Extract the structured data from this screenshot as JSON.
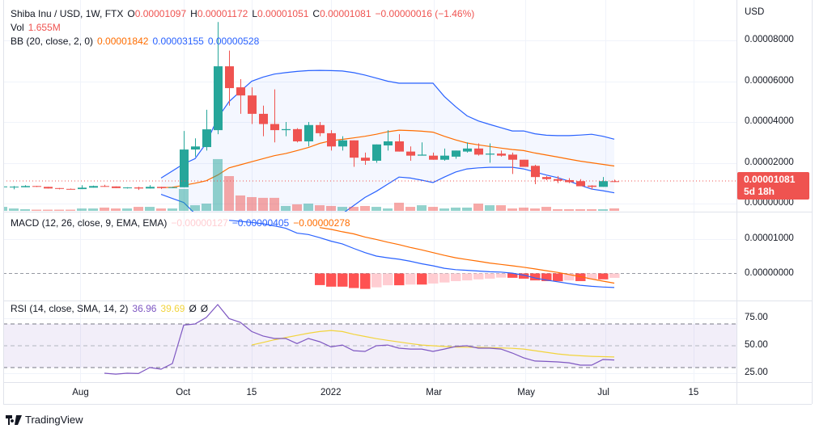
{
  "header": {
    "symbol": "Shiba Inu / USD, 1W, FTX",
    "o_label": "O",
    "o": "0.00001097",
    "h_label": "H",
    "h": "0.00001172",
    "l_label": "L",
    "l": "0.00001051",
    "c_label": "C",
    "c": "0.00001081",
    "change": "−0.00000016 (−1.46%)"
  },
  "volume_legend": {
    "label": "Vol",
    "value": "1.655M"
  },
  "bb_legend": {
    "label": "BB (20, close, 2, 0)",
    "basis": "0.00001842",
    "upper": "0.00003155",
    "lower": "0.00000528"
  },
  "macd_legend": {
    "label": "MACD (12, 26, close, 9, EMA, EMA)",
    "histogram": "−0.00000127",
    "macd": "−0.00000405",
    "signal": "−0.00000278"
  },
  "rsi_legend": {
    "label": "RSI (14, close, SMA, 14, 2)",
    "rsi": "36.96",
    "sma": "39.69",
    "extra1": "Ø",
    "extra2": "Ø"
  },
  "price_axis": {
    "currency": "USD",
    "ticks": [
      "0.00008000",
      "0.00006000",
      "0.00004000",
      "0.00002000",
      "0.00000000"
    ],
    "tick_values": [
      8e-05,
      6e-05,
      4e-05,
      2e-05,
      0
    ],
    "last_price": "0.00001081",
    "countdown": "5d 18h"
  },
  "macd_axis": {
    "ticks": [
      "0.00001000",
      "0.00000000"
    ],
    "tick_values": [
      1e-05,
      0
    ]
  },
  "rsi_axis": {
    "ticks": [
      "75.00",
      "50.00",
      "25.00"
    ],
    "tick_values": [
      75,
      50,
      25
    ],
    "upper_band": 70,
    "middle": 50,
    "lower_band": 30
  },
  "time_axis": {
    "ticks": [
      "Aug",
      "Oct",
      "15",
      "2022",
      "Mar",
      "May",
      "Jul",
      "15"
    ]
  },
  "footer": {
    "brand": "TradingView"
  },
  "colors": {
    "up": "#26a69a",
    "down": "#ef5350",
    "bb_band": "#2962ff",
    "bb_basis": "#ff6d00",
    "macd": "#2962ff",
    "signal": "#ff6d00",
    "hist_fall": "#ff5252",
    "hist_rise": "#ffcdd2",
    "rsi": "#7e57c2",
    "rsi_sma": "#f2d43c"
  },
  "chart_data": {
    "type": "candlestick",
    "interval": "1W",
    "candles_ohlc": [
      [
        8.2e-06,
        8.6e-06,
        8e-06,
        8.4e-06
      ],
      [
        8e-06,
        8.6e-06,
        7e-06,
        8.3e-06
      ],
      [
        8e-06,
        9e-06,
        8e-06,
        8.6e-06
      ],
      [
        8.6e-06,
        8.7e-06,
        8.1e-06,
        8.2e-06
      ],
      [
        8.2e-06,
        8.2e-06,
        7.4e-06,
        7.4e-06
      ],
      [
        7.6e-06,
        7.6e-06,
        7e-06,
        7.2e-06
      ],
      [
        7.2e-06,
        7.4e-06,
        7e-06,
        7.1e-06
      ],
      [
        7.1e-06,
        9e-06,
        7.1e-06,
        7.8e-06
      ],
      [
        7.8e-06,
        8.8e-06,
        7.8e-06,
        8.6e-06
      ],
      [
        8.6e-06,
        9.2e-06,
        8.2e-06,
        8.5e-06
      ],
      [
        8.4e-06,
        8.4e-06,
        7.6e-06,
        7.6e-06
      ],
      [
        7.6e-06,
        8e-06,
        7.4e-06,
        7.9e-06
      ],
      [
        7.9e-06,
        8.2e-06,
        6.7e-06,
        7.4e-06
      ],
      [
        7.4e-06,
        9e-06,
        7.4e-06,
        8.2e-06
      ],
      [
        8.2e-06,
        8.2e-06,
        7.2e-06,
        7.6e-06
      ],
      [
        7.6e-06,
        8.2e-06,
        7.6e-06,
        8e-06
      ],
      [
        8e-06,
        3.56e-05,
        8e-06,
        2.65e-05
      ],
      [
        2.65e-05,
        3.2e-05,
        2.3e-05,
        2.8e-05
      ],
      [
        2.77e-05,
        4.6e-05,
        2.6e-05,
        3.64e-05
      ],
      [
        3.6e-05,
        8.9e-05,
        3.4e-05,
        6.73e-05
      ],
      [
        6.73e-05,
        7.5e-05,
        4.8e-05,
        5.66e-05
      ],
      [
        5.7e-05,
        6.1e-05,
        4.4e-05,
        5.3e-05
      ],
      [
        5.3e-05,
        5.7e-05,
        3.9e-05,
        4.4e-05
      ],
      [
        4.4e-05,
        4.8e-05,
        3.3e-05,
        3.9e-05
      ],
      [
        3.9e-05,
        5.6e-05,
        3e-05,
        3.6e-05
      ],
      [
        3.6e-05,
        4e-05,
        3.3e-05,
        3.65e-05
      ],
      [
        3.65e-05,
        3.7e-05,
        3e-05,
        3.05e-05
      ],
      [
        3.05e-05,
        4e-05,
        2.8e-05,
        3.85e-05
      ],
      [
        3.85e-05,
        4e-05,
        3.3e-05,
        3.45e-05
      ],
      [
        3.45e-05,
        3.6e-05,
        2.6e-05,
        2.8e-05
      ],
      [
        2.8e-05,
        3.3e-05,
        2.6e-05,
        3.1e-05
      ],
      [
        3.1e-05,
        3.1e-05,
        1.8e-05,
        2.25e-05
      ],
      [
        2.25e-05,
        2.5e-05,
        1.9e-05,
        2.1e-05
      ],
      [
        2.1e-05,
        2.9e-05,
        2e-05,
        2.9e-05
      ],
      [
        2.85e-05,
        3.6e-05,
        2.6e-05,
        3.05e-05
      ],
      [
        3.05e-05,
        3.4e-05,
        2.55e-05,
        2.55e-05
      ],
      [
        2.55e-05,
        2.8e-05,
        2.1e-05,
        2.35e-05
      ],
      [
        2.35e-05,
        3e-05,
        2.35e-05,
        2.4e-05
      ],
      [
        2.35e-05,
        2.5e-05,
        2.15e-05,
        2.15e-05
      ],
      [
        2.15e-05,
        2.7e-05,
        2.1e-05,
        2.35e-05
      ],
      [
        2.3e-05,
        2.6e-05,
        2.2e-05,
        2.6e-05
      ],
      [
        2.55e-05,
        3e-05,
        2.5e-05,
        2.7e-05
      ],
      [
        2.7e-05,
        2.95e-05,
        2.35e-05,
        2.4e-05
      ],
      [
        2.4e-05,
        2.95e-05,
        2e-05,
        2.45e-05
      ],
      [
        2.45e-05,
        2.6e-05,
        2.3e-05,
        2.35e-05
      ],
      [
        2.4e-05,
        2.5e-05,
        1.45e-05,
        2.15e-05
      ],
      [
        2.15e-05,
        2.15e-05,
        1.8e-05,
        1.8e-05
      ],
      [
        1.85e-05,
        1.9e-05,
        9.5e-06,
        1.3e-05
      ],
      [
        1.3e-05,
        1.35e-05,
        1.15e-05,
        1.2e-05
      ],
      [
        1.2e-05,
        1.35e-05,
        1e-05,
        1.12e-05
      ],
      [
        1.15e-05,
        1.25e-05,
        1e-05,
        1.05e-05
      ],
      [
        1.1e-05,
        1.2e-05,
        8.5e-06,
        8.5e-06
      ],
      [
        8.8e-06,
        9e-06,
        7e-06,
        8.2e-06
      ],
      [
        8.2e-06,
        1.3e-05,
        8.2e-06,
        1.1e-05
      ],
      [
        1.097e-05,
        1.172e-05,
        1.051e-05,
        1.081e-05
      ]
    ],
    "volume_millions": [
      2.7,
      1.6,
      1.1,
      0.8,
      0.8,
      0.8,
      0.8,
      1.6,
      1.6,
      2.2,
      1.6,
      1.6,
      2.7,
      2.7,
      1.6,
      1.6,
      14.8,
      3.8,
      4.9,
      35,
      23.5,
      10.4,
      9.3,
      8.8,
      8.8,
      3.3,
      4.4,
      4.9,
      3.8,
      3.3,
      2.7,
      2.7,
      3.3,
      2.7,
      1.6,
      5.5,
      2.7,
      3.8,
      2.7,
      1.6,
      2.2,
      2.2,
      4.9,
      3.8,
      3.8,
      1.6,
      2.2,
      1.6,
      2.7,
      1.1,
      1.1,
      1.1,
      1.1,
      1.1,
      1.655
    ],
    "bb_upper": [
      null,
      null,
      null,
      null,
      null,
      null,
      null,
      null,
      null,
      null,
      null,
      null,
      null,
      null,
      1.25e-05,
      1.6e-05,
      1.95e-05,
      2.2e-05,
      2.97e-05,
      4.2e-05,
      5e-05,
      5.5e-05,
      6e-05,
      6.2e-05,
      6.35e-05,
      6.42e-05,
      6.48e-05,
      6.52e-05,
      6.53e-05,
      6.52e-05,
      6.5e-05,
      6.42e-05,
      6.3e-05,
      6.15e-05,
      6e-05,
      5.9e-05,
      5.9e-05,
      5.9e-05,
      5.9e-05,
      5.25e-05,
      4.75e-05,
      4.3e-05,
      4.05e-05,
      3.88e-05,
      3.72e-05,
      3.56e-05,
      3.56e-05,
      3.42e-05,
      3.35e-05,
      3.33e-05,
      3.33e-05,
      3.36e-05,
      3.4e-05,
      3.3e-05,
      3.155e-05
    ],
    "bb_basis": [
      null,
      null,
      null,
      null,
      null,
      null,
      null,
      null,
      null,
      null,
      null,
      null,
      null,
      null,
      7.8e-06,
      8e-06,
      9e-06,
      1e-05,
      1.12e-05,
      1.4e-05,
      1.75e-05,
      1.9e-05,
      2.05e-05,
      2.2e-05,
      2.35e-05,
      2.45e-05,
      2.6e-05,
      2.75e-05,
      2.95e-05,
      3.08e-05,
      3.15e-05,
      3.22e-05,
      3.3e-05,
      3.4e-05,
      3.52e-05,
      3.6e-05,
      3.58e-05,
      3.55e-05,
      3.5e-05,
      3.3e-05,
      3.12e-05,
      2.97e-05,
      2.88e-05,
      2.8e-05,
      2.72e-05,
      2.65e-05,
      2.6e-05,
      2.48e-05,
      2.38e-05,
      2.28e-05,
      2.18e-05,
      2.08e-05,
      2e-05,
      1.92e-05,
      1.842e-05
    ],
    "bb_lower": [
      null,
      null,
      null,
      null,
      null,
      null,
      null,
      null,
      null,
      null,
      null,
      null,
      null,
      null,
      4.5e-06,
      2.5e-06,
      5e-07,
      -5e-06,
      -1.1e-05,
      -1.6e-05,
      -2e-05,
      -2.3e-05,
      -2.5e-05,
      -2.5e-05,
      -2.4e-05,
      -2.2e-05,
      -1.9e-05,
      -1.6e-05,
      -1.3e-05,
      -9e-06,
      -5e-06,
      -1e-06,
      3e-06,
      6e-06,
      9.5e-06,
      1.3e-05,
      1.25e-05,
      1.15e-05,
      1.03e-05,
      1.3e-05,
      1.55e-05,
      1.7e-05,
      1.75e-05,
      1.78e-05,
      1.78e-05,
      1.78e-05,
      1.7e-05,
      1.55e-05,
      1.4e-05,
      1.27e-05,
      1.1e-05,
      9e-06,
      7.1e-06,
      6.3e-06,
      5.28e-06
    ],
    "macd": [
      null,
      null,
      null,
      null,
      null,
      null,
      null,
      null,
      null,
      null,
      null,
      null,
      null,
      null,
      null,
      null,
      null,
      null,
      null,
      null,
      1.53e-05,
      1.5e-05,
      1.47e-05,
      1.43e-05,
      1.37e-05,
      1.3e-05,
      1.16e-05,
      1.12e-05,
      1.03e-05,
      9.3e-06,
      8.5e-06,
      7.2e-06,
      6e-06,
      5e-06,
      4.5e-06,
      4.1e-06,
      3.5e-06,
      2.8e-06,
      2.2e-06,
      1.5e-06,
      1.1e-06,
      9e-07,
      7e-07,
      5e-07,
      4e-07,
      1e-07,
      -5e-07,
      -1.3e-06,
      -1.9e-06,
      -2.4e-06,
      -2.9e-06,
      -3.4e-06,
      -3.7e-06,
      -3.9e-06,
      -4.05e-06
    ],
    "macd_signal": [
      null,
      null,
      null,
      null,
      null,
      null,
      null,
      null,
      null,
      null,
      null,
      null,
      null,
      null,
      null,
      null,
      null,
      null,
      null,
      null,
      null,
      null,
      null,
      null,
      null,
      null,
      null,
      null,
      1.32e-05,
      1.27e-05,
      1.2e-05,
      1.14e-05,
      1.05e-05,
      9.8e-06,
      9e-06,
      8.3e-06,
      7.5e-06,
      6.8e-06,
      6e-06,
      5.2e-06,
      4.5e-06,
      4e-06,
      3.5e-06,
      3e-06,
      2.6e-06,
      2.2e-06,
      1.8e-06,
      1.3e-06,
      8e-07,
      3e-07,
      -3e-07,
      -9e-07,
      -1.6e-06,
      -2.2e-06,
      -2.78e-06
    ],
    "macd_histogram": [
      null,
      null,
      null,
      null,
      null,
      null,
      null,
      null,
      null,
      null,
      null,
      null,
      null,
      null,
      null,
      null,
      null,
      null,
      null,
      null,
      null,
      null,
      null,
      null,
      null,
      null,
      null,
      null,
      -3.35e-06,
      -3.8e-06,
      -3.8e-06,
      -4.2e-06,
      -4.45e-06,
      -4e-06,
      -3.4e-06,
      -3.4e-06,
      -3.2e-06,
      -3.2e-06,
      -2.9e-06,
      -2.6e-06,
      -2.2e-06,
      -2e-06,
      -1.7e-06,
      -1.5e-06,
      -1.2e-06,
      -1.25e-06,
      -1.5e-06,
      -2e-06,
      -2.2e-06,
      -2.25e-06,
      -2e-06,
      -2.2e-06,
      -1.7e-06,
      -1.7e-06,
      -1.27e-06
    ],
    "rsi": [
      null,
      null,
      null,
      null,
      null,
      null,
      null,
      null,
      null,
      24.8,
      24,
      24.8,
      24.5,
      30,
      28.5,
      33.7,
      69,
      70,
      76,
      87.8,
      75,
      71.5,
      63,
      59,
      56.7,
      56.7,
      52,
      56.7,
      53.7,
      49,
      50.7,
      45.5,
      44.8,
      50,
      50.7,
      47.8,
      47,
      47,
      44.8,
      47,
      49.3,
      50,
      47.8,
      47.8,
      47,
      43.3,
      39,
      36,
      35.6,
      35.2,
      34.4,
      32.2,
      32.2,
      37.4,
      36.96
    ],
    "rsi_sma": [
      null,
      null,
      null,
      null,
      null,
      null,
      null,
      null,
      null,
      null,
      null,
      null,
      null,
      null,
      null,
      null,
      null,
      null,
      null,
      null,
      null,
      null,
      50.7,
      53,
      55.5,
      57.5,
      59.5,
      61.5,
      63,
      64,
      63,
      60.5,
      58.5,
      56.5,
      55,
      53.5,
      52,
      50.7,
      50,
      49.3,
      48.8,
      48.7,
      48.5,
      48.3,
      48,
      47.6,
      47,
      45.5,
      44,
      42.5,
      41.5,
      40.8,
      40.3,
      40,
      39.69
    ],
    "price_range": [
      0,
      9e-05
    ],
    "grid": true
  }
}
